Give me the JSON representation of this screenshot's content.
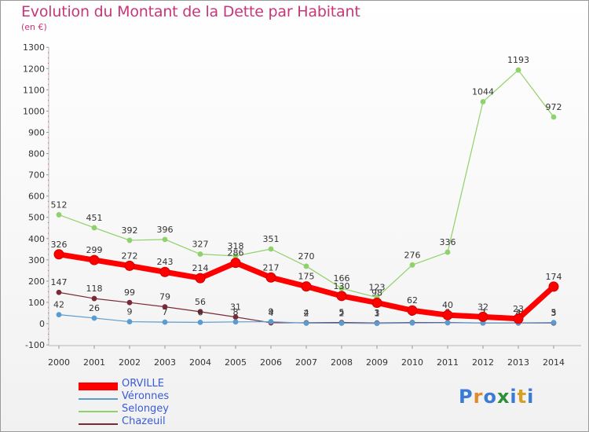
{
  "title": "Evolution du Montant de la Dette par Habitant",
  "subtitle": "(en €)",
  "logo_text": "Proxiti",
  "chart_data": {
    "type": "line",
    "title": "Evolution du Montant de la Dette par Habitant",
    "ylabel": "(en €)",
    "xlabel": "",
    "x": [
      2000,
      2001,
      2002,
      2003,
      2004,
      2005,
      2006,
      2007,
      2008,
      2009,
      2010,
      2011,
      2012,
      2013,
      2014
    ],
    "ylim": [
      -100,
      1300
    ],
    "yticks": [
      -100,
      0,
      100,
      200,
      300,
      400,
      500,
      600,
      700,
      800,
      900,
      1000,
      1100,
      1200,
      1300
    ],
    "series": [
      {
        "name": "Selongey",
        "color": "#8fd16a",
        "values": [
          512,
          451,
          392,
          396,
          327,
          318,
          351,
          270,
          166,
          123,
          276,
          336,
          1044,
          1193,
          972
        ]
      },
      {
        "name": "Chazeuil",
        "color": "#7a2a35",
        "values": [
          147,
          118,
          99,
          79,
          56,
          31,
          4,
          4,
          5,
          3,
          5,
          5,
          3,
          3,
          3
        ]
      },
      {
        "name": "Véronnes",
        "color": "#5a9bd0",
        "values": [
          42,
          26,
          9,
          7,
          6,
          8,
          9,
          2,
          2,
          1,
          3,
          4,
          3,
          4,
          5
        ]
      },
      {
        "name": "ORVILLE",
        "color": "#ff0000",
        "values": [
          326,
          299,
          272,
          243,
          214,
          286,
          217,
          175,
          130,
          98,
          62,
          40,
          32,
          23,
          174
        ]
      }
    ],
    "legend": [
      {
        "name": "ORVILLE",
        "color": "#ff0000"
      },
      {
        "name": "Véronnes",
        "color": "#5a9bd0"
      },
      {
        "name": "Selongey",
        "color": "#8fd16a"
      },
      {
        "name": "Chazeuil",
        "color": "#7a2a35"
      }
    ],
    "grid": false,
    "legend_position": "bottom-left"
  }
}
